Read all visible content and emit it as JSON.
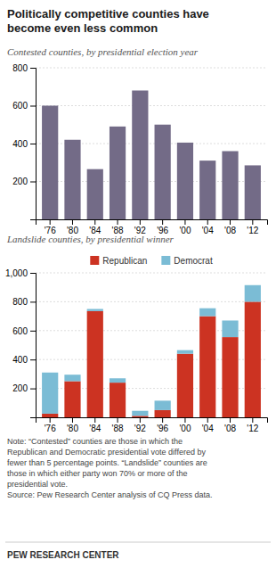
{
  "chart_data": [
    {
      "type": "bar",
      "title": "Politically competitive counties have\nbecome even less common",
      "subtitle": "Contested counties, by presidential election year",
      "categories": [
        "'76",
        "'80",
        "'84",
        "'88",
        "'92",
        "'96",
        "'00",
        "'04",
        "'08",
        "'12"
      ],
      "values": [
        600,
        420,
        265,
        490,
        680,
        500,
        405,
        310,
        360,
        285
      ],
      "color": "#736b87",
      "ylim": [
        0,
        800
      ],
      "yticks": [
        200,
        400,
        600,
        800
      ],
      "grid": true
    },
    {
      "type": "bar",
      "subtitle": "Landslide counties, by presidential winner",
      "categories": [
        "'76",
        "'80",
        "'84",
        "'88",
        "'92",
        "'96",
        "'00",
        "'04",
        "'08",
        "'12"
      ],
      "series": [
        {
          "name": "Republican",
          "color": "#cc3322",
          "values": [
            25,
            250,
            735,
            240,
            10,
            50,
            440,
            700,
            555,
            800
          ]
        },
        {
          "name": "Democrat",
          "color": "#7bbcd5",
          "values": [
            285,
            45,
            15,
            30,
            35,
            65,
            25,
            55,
            115,
            115
          ]
        }
      ],
      "stacked": true,
      "legend": "top",
      "ylim": [
        0,
        1000
      ],
      "yticks": [
        200,
        400,
        600,
        800,
        {
          "value": 1000,
          "label": "1,000"
        }
      ],
      "grid": true,
      "annotations": [
        "Note: “Contested” counties are those in which the",
        "Republican and Democratic presidential vote differed by",
        "fewer than 5 percentage points. “Landslide” counties are",
        "those in which either party won 70% or more of the",
        "presidential vote.",
        "Source: Pew Research Center analysis of CQ Press data.",
        "PEW RESEARCH CENTER"
      ]
    }
  ]
}
